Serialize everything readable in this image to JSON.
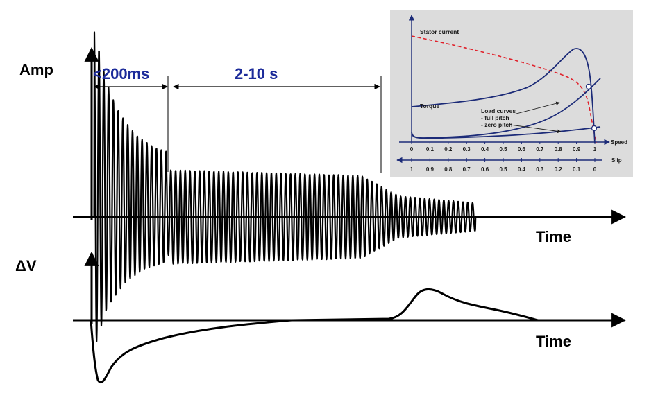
{
  "labels": {
    "amp_axis": "Amp",
    "delta_v_axis": "ΔV",
    "time_axis_top": "Time",
    "time_axis_bottom": "Time",
    "inrush_interval": "<200ms",
    "startup_interval": "2-10 s"
  },
  "inset": {
    "stator_current": "Stator current",
    "torque": "Torque",
    "load_curves": "Load curves",
    "full_pitch": "- full pitch",
    "zero_pitch": "- zero pitch",
    "speed_axis": "Speed",
    "slip_axis": "Slip",
    "speed_ticks": [
      "0",
      "0.1",
      "0.2",
      "0.3",
      "0.4",
      "0.5",
      "0.6",
      "0.7",
      "0.8",
      "0.9",
      "1"
    ],
    "slip_ticks": [
      "1",
      "0.9",
      "0.8",
      "0.7",
      "0.6",
      "0.5",
      "0.4",
      "0.3",
      "0.2",
      "0.1",
      "0"
    ]
  },
  "colors": {
    "interval_text": "#1c2b9a",
    "inset_background": "#dcdcdc",
    "inset_curve": "#1c2b78",
    "stator_current_curve": "#e0202a"
  }
}
